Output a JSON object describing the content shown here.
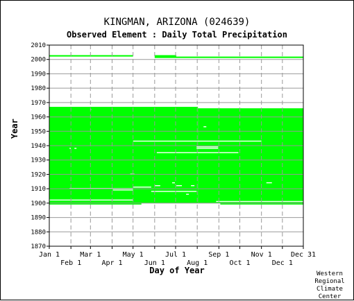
{
  "title": "KINGMAN, ARIZONA   (024639)",
  "subtitle": "Observed Element : Daily Total Precipitation",
  "credit": [
    "Western",
    "Regional",
    "Climate",
    "Center"
  ],
  "chart_data": {
    "type": "area",
    "title": "KINGMAN, ARIZONA   (024639)",
    "subtitle": "Observed Element : Daily Total Precipitation",
    "xlabel": "Day of Year",
    "ylabel": "Year",
    "xlim": [
      1,
      365
    ],
    "ylim": [
      1870,
      2010
    ],
    "grid": true,
    "x_ticks_top": [
      {
        "label": "Jan 1",
        "day": 1
      },
      {
        "label": "Mar 1",
        "day": 60
      },
      {
        "label": "May 1",
        "day": 121
      },
      {
        "label": "Jul 1",
        "day": 182
      },
      {
        "label": "Sep 1",
        "day": 244
      },
      {
        "label": "Nov 1",
        "day": 305
      },
      {
        "label": "Dec 31",
        "day": 365
      }
    ],
    "x_ticks_bottom": [
      {
        "label": "Feb 1",
        "day": 32
      },
      {
        "label": "Apr 1",
        "day": 91
      },
      {
        "label": "Jun 1",
        "day": 152
      },
      {
        "label": "Aug 1",
        "day": 213
      },
      {
        "label": "Oct 1",
        "day": 274
      },
      {
        "label": "Dec 1",
        "day": 335
      }
    ],
    "y_ticks": [
      1870,
      1880,
      1890,
      1900,
      1910,
      1920,
      1930,
      1940,
      1950,
      1960,
      1970,
      1980,
      1990,
      2000,
      2010
    ],
    "colors": {
      "available": "#00ff00",
      "grid": "#999999"
    },
    "series": [
      {
        "role": "data available",
        "blocks": [
          {
            "x0": 1,
            "x1": 214,
            "y0": 1900,
            "y1": 1967
          },
          {
            "x0": 214,
            "x1": 365,
            "y0": 1900,
            "y1": 1966
          },
          {
            "x0": 1,
            "x1": 133,
            "y0": 1899,
            "y1": 1900
          },
          {
            "x0": 246,
            "x1": 365,
            "y0": 1899,
            "y1": 1900
          },
          {
            "x0": 1,
            "x1": 121,
            "y0": 2002,
            "y1": 2003
          },
          {
            "x0": 152,
            "x1": 365,
            "y0": 2001,
            "y1": 2002
          },
          {
            "x0": 152,
            "x1": 183,
            "y0": 2002,
            "y1": 2003
          }
        ]
      },
      {
        "role": "missing data",
        "segments": [
          {
            "x0": 121,
            "x1": 305,
            "y": 1943
          },
          {
            "x0": 155,
            "x1": 272,
            "y": 1935
          },
          {
            "x0": 212,
            "x1": 243,
            "y": 1938
          },
          {
            "x0": 212,
            "x1": 243,
            "y": 1939
          },
          {
            "x0": 30,
            "x1": 121,
            "y": 1910
          },
          {
            "x0": 92,
            "x1": 121,
            "y": 1909
          },
          {
            "x0": 121,
            "x1": 147,
            "y": 1911
          },
          {
            "x0": 147,
            "x1": 212,
            "y": 1908
          },
          {
            "x0": 152,
            "x1": 160,
            "y": 1912
          },
          {
            "x0": 177,
            "x1": 181,
            "y": 1914
          },
          {
            "x0": 183,
            "x1": 191,
            "y": 1912
          },
          {
            "x0": 204,
            "x1": 209,
            "y": 1912
          },
          {
            "x0": 312,
            "x1": 320,
            "y": 1914
          },
          {
            "x0": 117,
            "x1": 123,
            "y": 1920
          },
          {
            "x0": 222,
            "x1": 226,
            "y": 1953
          },
          {
            "x0": 197,
            "x1": 201,
            "y": 1906
          },
          {
            "x0": 1,
            "x1": 121,
            "y": 1902
          },
          {
            "x0": 240,
            "x1": 365,
            "y": 1901
          },
          {
            "x0": 30,
            "x1": 32,
            "y": 1938
          },
          {
            "x0": 37,
            "x1": 40,
            "y": 1938
          },
          {
            "x0": 60,
            "x1": 61,
            "y": 1965
          },
          {
            "x0": 60,
            "x1": 61,
            "y": 1920
          }
        ]
      }
    ]
  }
}
